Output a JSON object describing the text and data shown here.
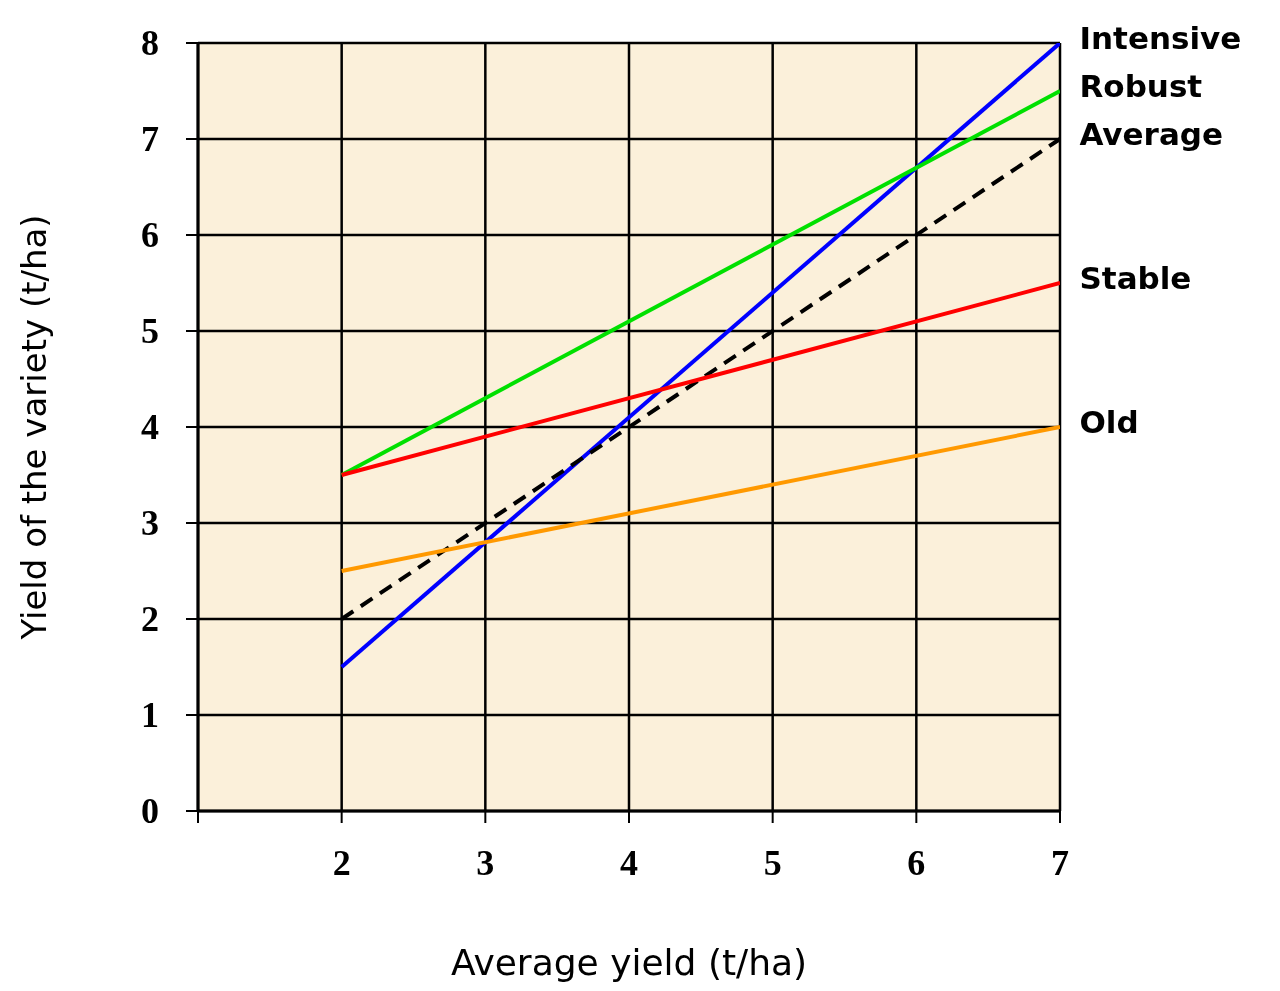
{
  "chart_data": {
    "type": "line",
    "xlabel": "Average yield (t/ha)",
    "ylabel": "Yield of the variety (t/ha)",
    "x": [
      2,
      7
    ],
    "xlim": [
      1,
      7
    ],
    "xticks": [
      {
        "value": 1,
        "label": null
      },
      2,
      3,
      4,
      5,
      6,
      7
    ],
    "ylim": [
      0,
      8
    ],
    "yticks": [
      0,
      1,
      2,
      3,
      4,
      5,
      6,
      7,
      8
    ],
    "grid": true,
    "legend": false,
    "marker": "none",
    "series": [
      {
        "name": "Intensive",
        "color": "#0000ff",
        "values": [
          1.5,
          8
        ]
      },
      {
        "name": "Robust",
        "color": "#00e000",
        "values": [
          3.5,
          7.5
        ]
      },
      {
        "name": "Average",
        "color": "#000000",
        "values": [
          2,
          7
        ],
        "line_style": "dashed"
      },
      {
        "name": "Stable",
        "color": "#ff0000",
        "values": [
          3.5,
          5.5
        ]
      },
      {
        "name": "Old",
        "color": "#ff9900",
        "values": [
          2.5,
          4
        ]
      }
    ]
  }
}
